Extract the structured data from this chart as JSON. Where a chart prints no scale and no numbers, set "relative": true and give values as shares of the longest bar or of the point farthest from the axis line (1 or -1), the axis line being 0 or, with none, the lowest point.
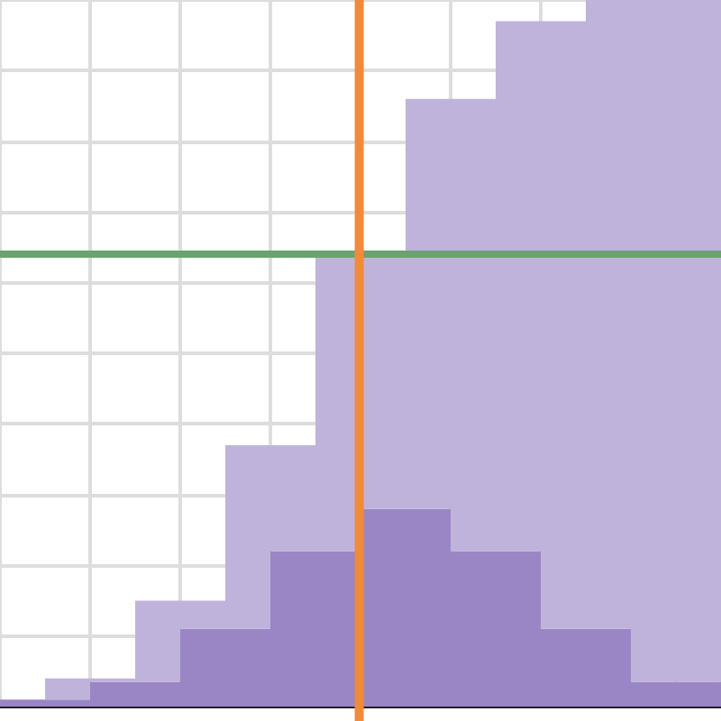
{
  "chart_data": {
    "type": "bar",
    "relative": true,
    "grid": true,
    "stacked": true,
    "categories": [
      null,
      null,
      null,
      null,
      null,
      null,
      null,
      null,
      null,
      null,
      null,
      null,
      null,
      null,
      null,
      null
    ],
    "series": [
      {
        "color": "#9a86c5",
        "values": [
          0.01,
          0.01,
          0.035,
          0.035,
          0.11,
          0.11,
          0.22,
          0.22,
          0.28,
          0.28,
          0.22,
          0.22,
          0.11,
          0.11,
          0.035,
          0.035
        ]
      },
      {
        "color": "#c0b3db",
        "values": [
          0,
          0.03,
          0.005,
          0.115,
          0.04,
          0.26,
          0.15,
          0.42,
          0.36,
          0.58,
          0.64,
          0.75,
          0.86,
          0.89,
          0.965,
          0.965
        ]
      }
    ],
    "ref_lines": [
      {
        "axis": "y",
        "value": 0.64,
        "color": "#6aa36f"
      }
    ]
  }
}
